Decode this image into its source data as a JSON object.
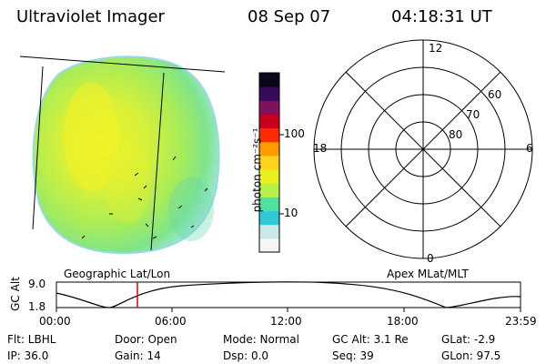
{
  "header": {
    "instrument": "Ultraviolet Imager",
    "date": "08 Sep 07",
    "time": "04:18:31 UT"
  },
  "colorbar": {
    "unit_label": "photon cm⁻²s⁻¹",
    "ticks": [
      "100",
      "10"
    ],
    "colors": [
      "#f5f5f5",
      "#c8e8ec",
      "#2fc9d6",
      "#4fe0a0",
      "#b8f04a",
      "#e8f020",
      "#ffd21e",
      "#ff9a00",
      "#ff2a00",
      "#c8001e",
      "#801060",
      "#3a0a5a",
      "#0a0818"
    ]
  },
  "polar_plot": {
    "mlt_labels": {
      "top": "12",
      "left": "18",
      "right": "6",
      "bottom": "0"
    },
    "lat_labels": [
      "60",
      "70",
      "80"
    ]
  },
  "timeline": {
    "left_label": "Geographic Lat/Lon",
    "right_label": "Apex MLat/MLT",
    "axis_title": "GC Alt",
    "y_ticks": [
      "9.0",
      "1.8"
    ],
    "x_ticks": [
      "00:00",
      "06:00",
      "12:00",
      "18:00",
      "23:59"
    ]
  },
  "status": {
    "flt": "Flt: LBHL",
    "door": "Door: Open",
    "mode": "Mode: Normal",
    "gcalt": "GC Alt: 3.1 Re",
    "glat": "GLat:  -2.9",
    "ip": "IP: 36.0",
    "gain": "Gain: 14",
    "dsp": "Dsp:     0.0",
    "seq": "Seq: 39",
    "glon": "GLon:  97.5"
  }
}
